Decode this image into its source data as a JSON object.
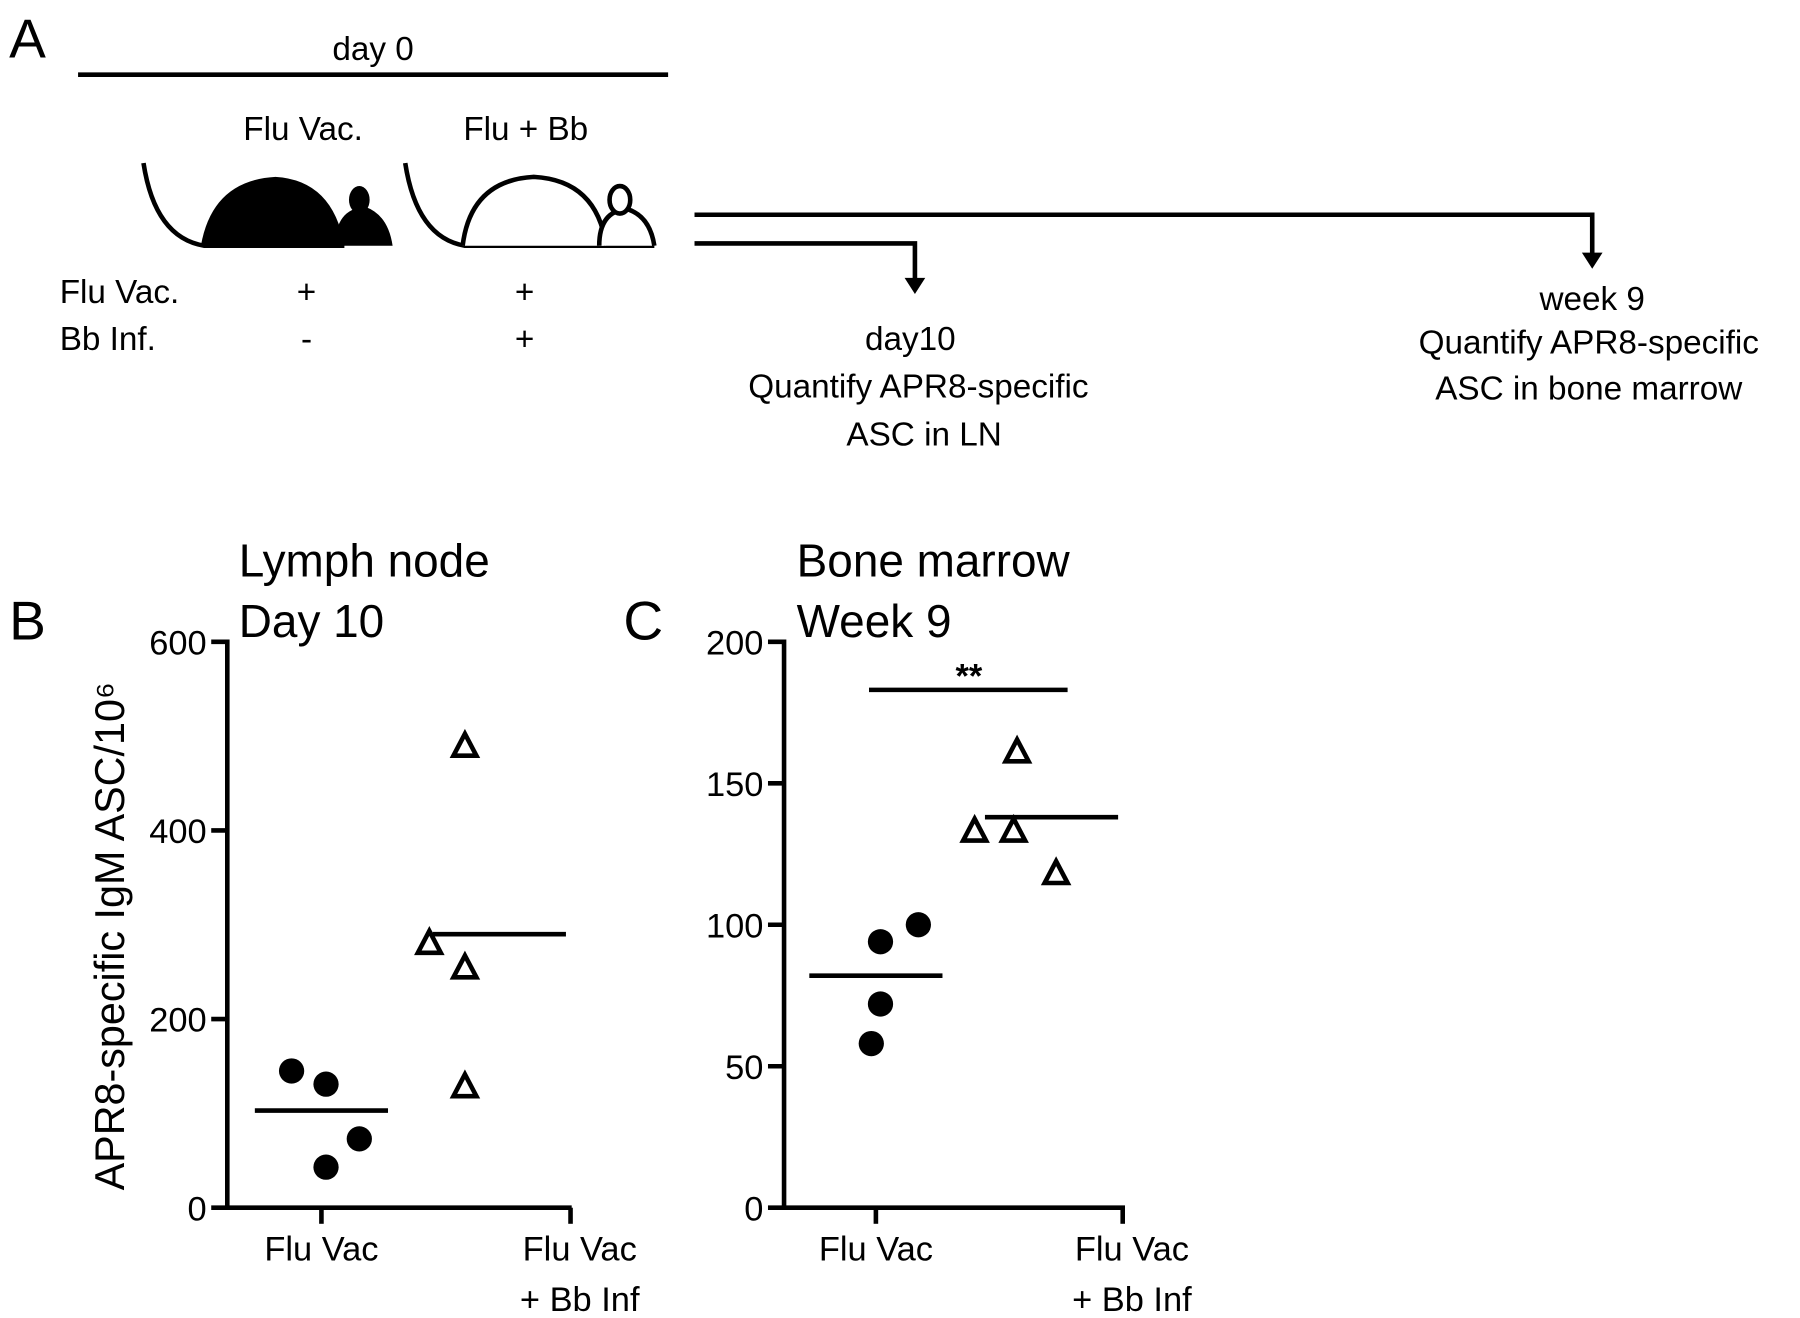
{
  "panel_a": {
    "letter": "A",
    "timeline": "day 0",
    "groups": [
      "Flu Vac.",
      "Flu + Bb"
    ],
    "rows": [
      {
        "label": "Flu Vac.",
        "marks": [
          "+",
          "+"
        ]
      },
      {
        "label": "Bb Inf.",
        "marks": [
          "-",
          "+"
        ]
      }
    ],
    "endpoints": [
      [
        "day10",
        "Quantify APR8-specific",
        "ASC in LN"
      ],
      [
        "week 9",
        "Quantify APR8-specific",
        "ASC in bone marrow"
      ]
    ]
  },
  "chart_data": [
    {
      "type": "scatter",
      "letter": "B",
      "title": [
        "Lymph node",
        "Day 10"
      ],
      "y_label": "APR8-specific IgM ASC/10⁶",
      "categories": [
        [
          "Flu Vac"
        ],
        [
          "Flu Vac",
          "+ Bb Inf"
        ]
      ],
      "groups": [
        {
          "marker": "circle",
          "values": [
            145,
            131,
            73,
            43
          ],
          "mean": 103
        },
        {
          "marker": "triangle",
          "values": [
            489,
            280,
            254,
            128
          ],
          "mean": 290
        }
      ],
      "ylim": [
        0,
        600
      ],
      "yticks": [
        0,
        200,
        400,
        600
      ]
    },
    {
      "type": "scatter",
      "letter": "C",
      "title": [
        "Bone marrow",
        "Week 9"
      ],
      "categories": [
        [
          "Flu Vac"
        ],
        [
          "Flu Vac",
          "+ Bb Inf"
        ]
      ],
      "groups": [
        {
          "marker": "circle",
          "values": [
            100,
            94,
            72,
            58
          ],
          "mean": 82
        },
        {
          "marker": "triangle",
          "values": [
            161,
            133,
            133,
            118
          ],
          "mean": 138
        }
      ],
      "significance": {
        "text": "**",
        "y": 183
      },
      "ylim": [
        0,
        200
      ],
      "yticks": [
        0,
        50,
        100,
        150,
        200
      ]
    }
  ]
}
